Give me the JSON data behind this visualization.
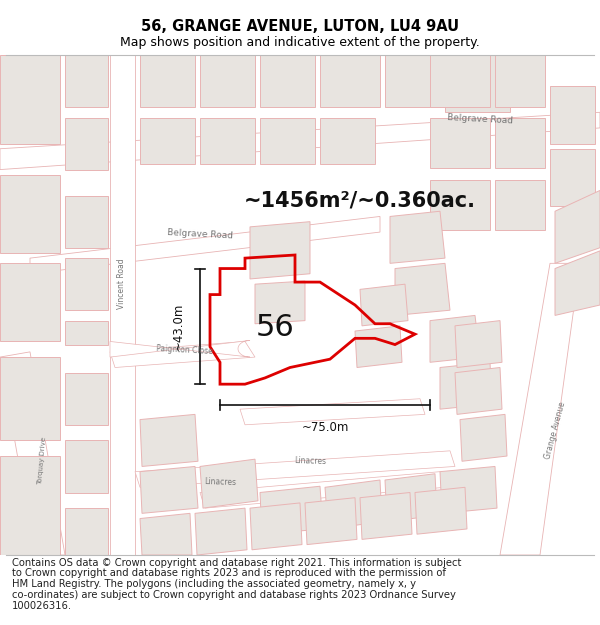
{
  "title": "56, GRANGE AVENUE, LUTON, LU4 9AU",
  "subtitle": "Map shows position and indicative extent of the property.",
  "area_text": "~1456m²/~0.360ac.",
  "number_label": "56",
  "dim_width": "~75.0m",
  "dim_height": "~43.0m",
  "bg_color": "#f2eeea",
  "map_bg": "#f2eeea",
  "road_fill": "#ffffff",
  "road_outline": "#e8b4b4",
  "building_fill": "#e8e4e0",
  "building_outline": "#e8b4b4",
  "highlight_outline": "#dd0000",
  "dim_color": "#111111",
  "text_color": "#555555",
  "footer_lines": [
    "Contains OS data © Crown copyright and database right 2021. This information is subject",
    "to Crown copyright and database rights 2023 and is reproduced with the permission of",
    "HM Land Registry. The polygons (including the associated geometry, namely x, y",
    "co-ordinates) are subject to Crown copyright and database rights 2023 Ordnance Survey",
    "100026316."
  ],
  "title_fontsize": 10.5,
  "subtitle_fontsize": 9,
  "footer_fontsize": 7.2,
  "label_fontsize": 6,
  "area_fontsize": 15,
  "num_fontsize": 22,
  "dim_fontsize": 8.5
}
